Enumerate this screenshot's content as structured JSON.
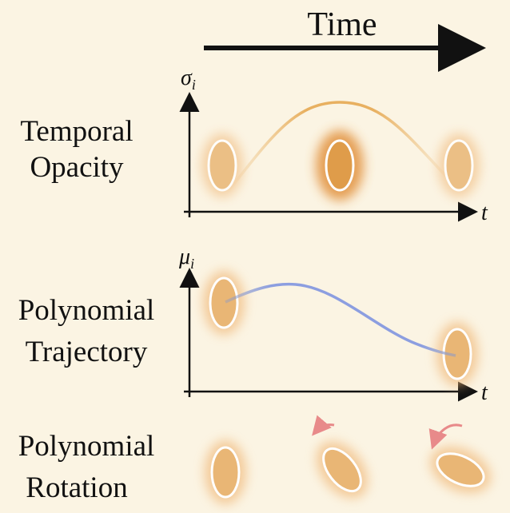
{
  "header": {
    "title": "Time"
  },
  "rows": [
    {
      "label": [
        "Temporal",
        "Opacity"
      ],
      "y_axis": {
        "symbol": "σ",
        "sub": "i"
      },
      "x_axis": "t"
    },
    {
      "label": [
        "Polynomial",
        "Trajectory"
      ],
      "y_axis": {
        "symbol": "μ",
        "sub": "i"
      },
      "x_axis": "t"
    },
    {
      "label": [
        "Polynomial",
        "Rotation"
      ]
    }
  ]
}
